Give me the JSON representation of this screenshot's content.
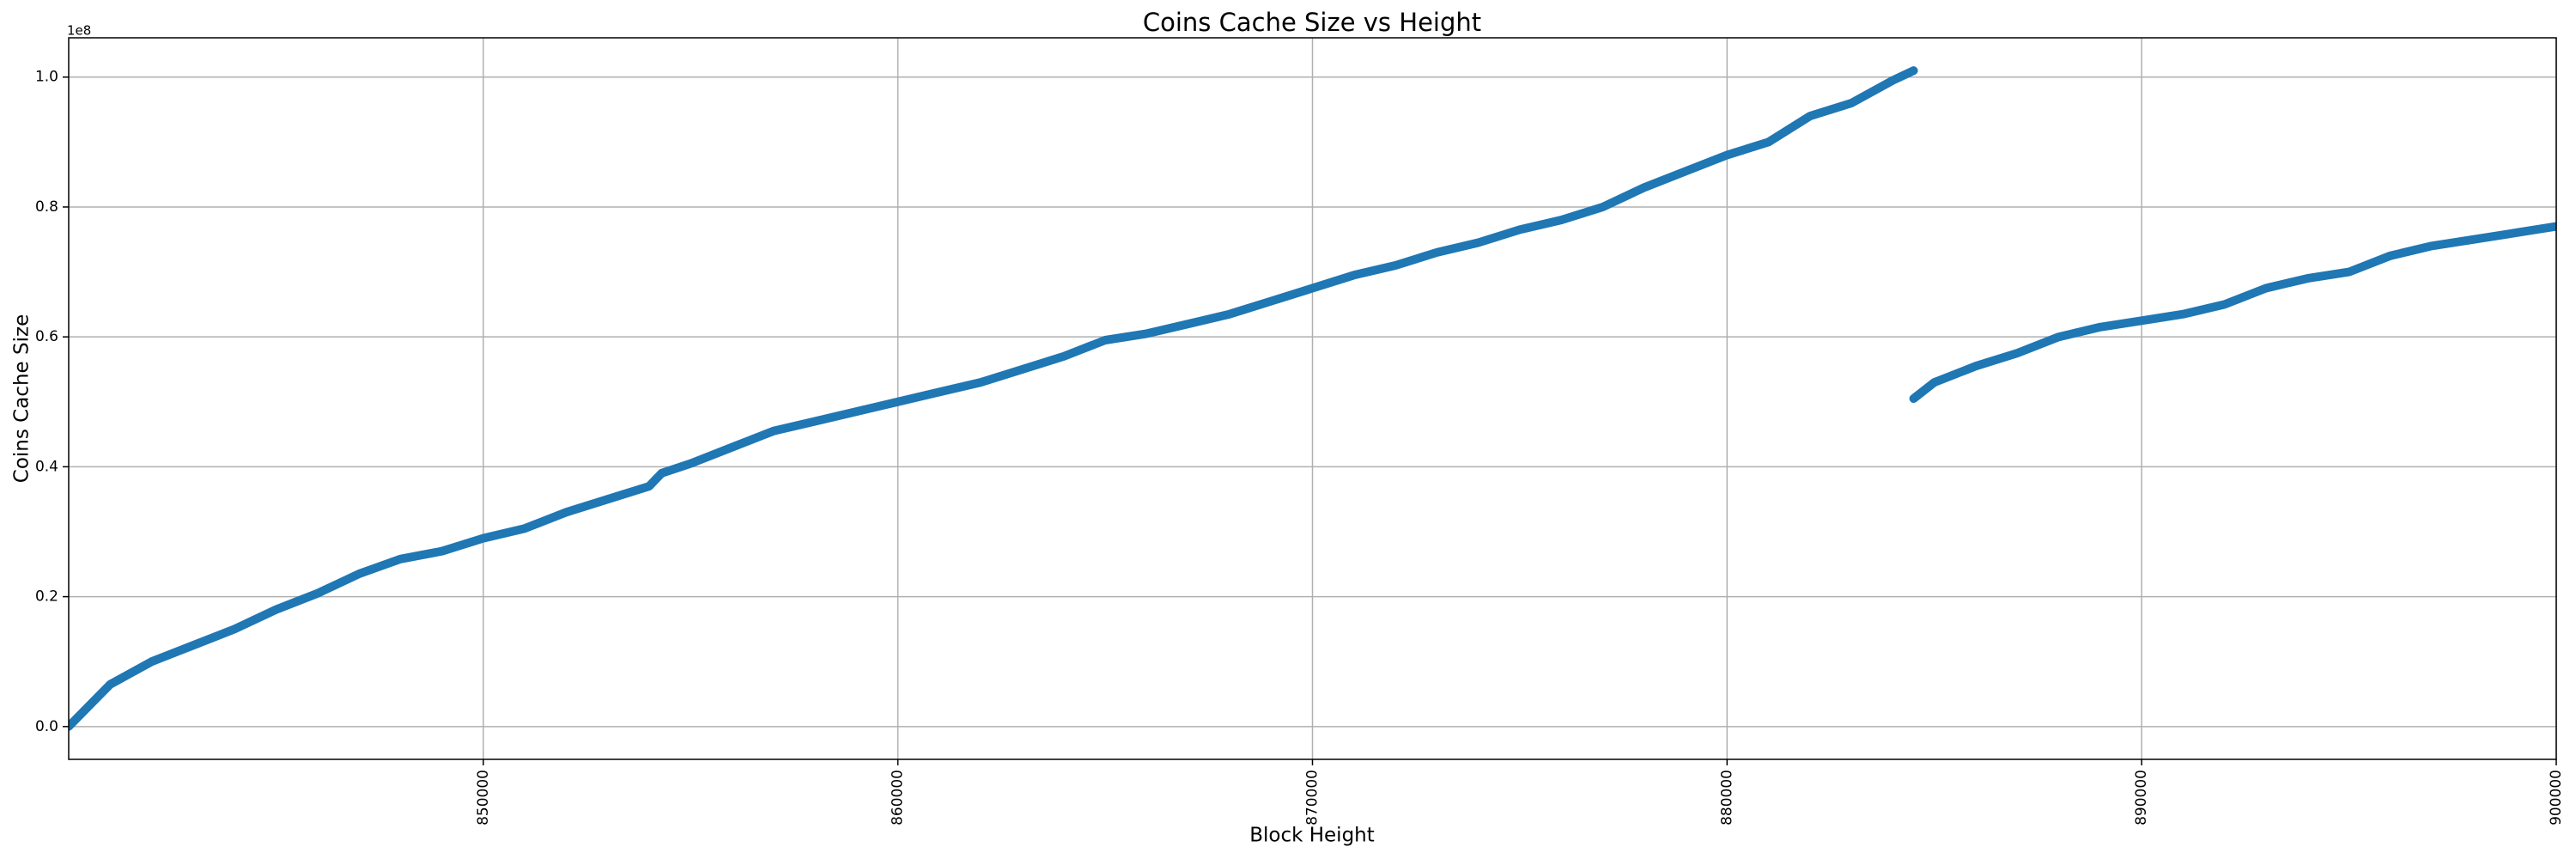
{
  "chart_data": {
    "type": "line",
    "title": "Coins Cache Size vs Height",
    "x_label": "Block Height",
    "y_label": "Coins Cache Size",
    "y_offset_label": "1e8",
    "x": [
      840000,
      841000,
      842000,
      843000,
      844000,
      845000,
      846000,
      847000,
      848000,
      849000,
      850000,
      851000,
      852000,
      853000,
      854000,
      854300,
      855000,
      856000,
      857000,
      858000,
      859000,
      860000,
      861000,
      862000,
      863000,
      864000,
      865000,
      866000,
      867000,
      868000,
      869000,
      870000,
      871000,
      872000,
      873000,
      874000,
      875000,
      876000,
      877000,
      878000,
      879000,
      880000,
      881000,
      882000,
      883000,
      884000,
      884500,
      null,
      884500,
      885000,
      886000,
      887000,
      888000,
      889000,
      890000,
      891000,
      892000,
      893000,
      894000,
      895000,
      896000,
      897000,
      898000,
      899000,
      900000
    ],
    "series": [
      {
        "name": "Coins Cache Size",
        "color": "#1f77b4",
        "values": [
          0,
          6500000,
          10000000,
          12500000,
          15000000,
          18000000,
          20500000,
          23500000,
          25800000,
          27000000,
          29000000,
          30500000,
          33000000,
          35000000,
          37000000,
          39000000,
          40500000,
          43000000,
          45500000,
          47000000,
          48500000,
          50000000,
          51500000,
          53000000,
          55000000,
          57000000,
          59500000,
          60500000,
          62000000,
          63500000,
          65500000,
          67500000,
          69500000,
          71000000,
          73000000,
          74500000,
          76500000,
          78000000,
          80000000,
          83000000,
          85500000,
          88000000,
          90000000,
          94000000,
          96000000,
          99500000,
          101000000,
          null,
          50500000,
          53000000,
          55500000,
          57500000,
          60000000,
          61500000,
          62500000,
          63500000,
          65000000,
          67500000,
          69000000,
          70000000,
          72500000,
          74000000,
          75000000,
          76000000,
          77000000
        ]
      }
    ],
    "xlim": [
      840000,
      900000
    ],
    "ylim": [
      -5050000,
      106050000
    ],
    "xticks": [
      850000,
      860000,
      870000,
      880000,
      890000,
      900000
    ],
    "yticks": [
      {
        "value": 0,
        "label": "0.0"
      },
      {
        "value": 20000000,
        "label": "0.2"
      },
      {
        "value": 40000000,
        "label": "0.4"
      },
      {
        "value": 60000000,
        "label": "0.6"
      },
      {
        "value": 80000000,
        "label": "0.8"
      },
      {
        "value": 100000000,
        "label": "1.0"
      }
    ],
    "grid": true
  }
}
